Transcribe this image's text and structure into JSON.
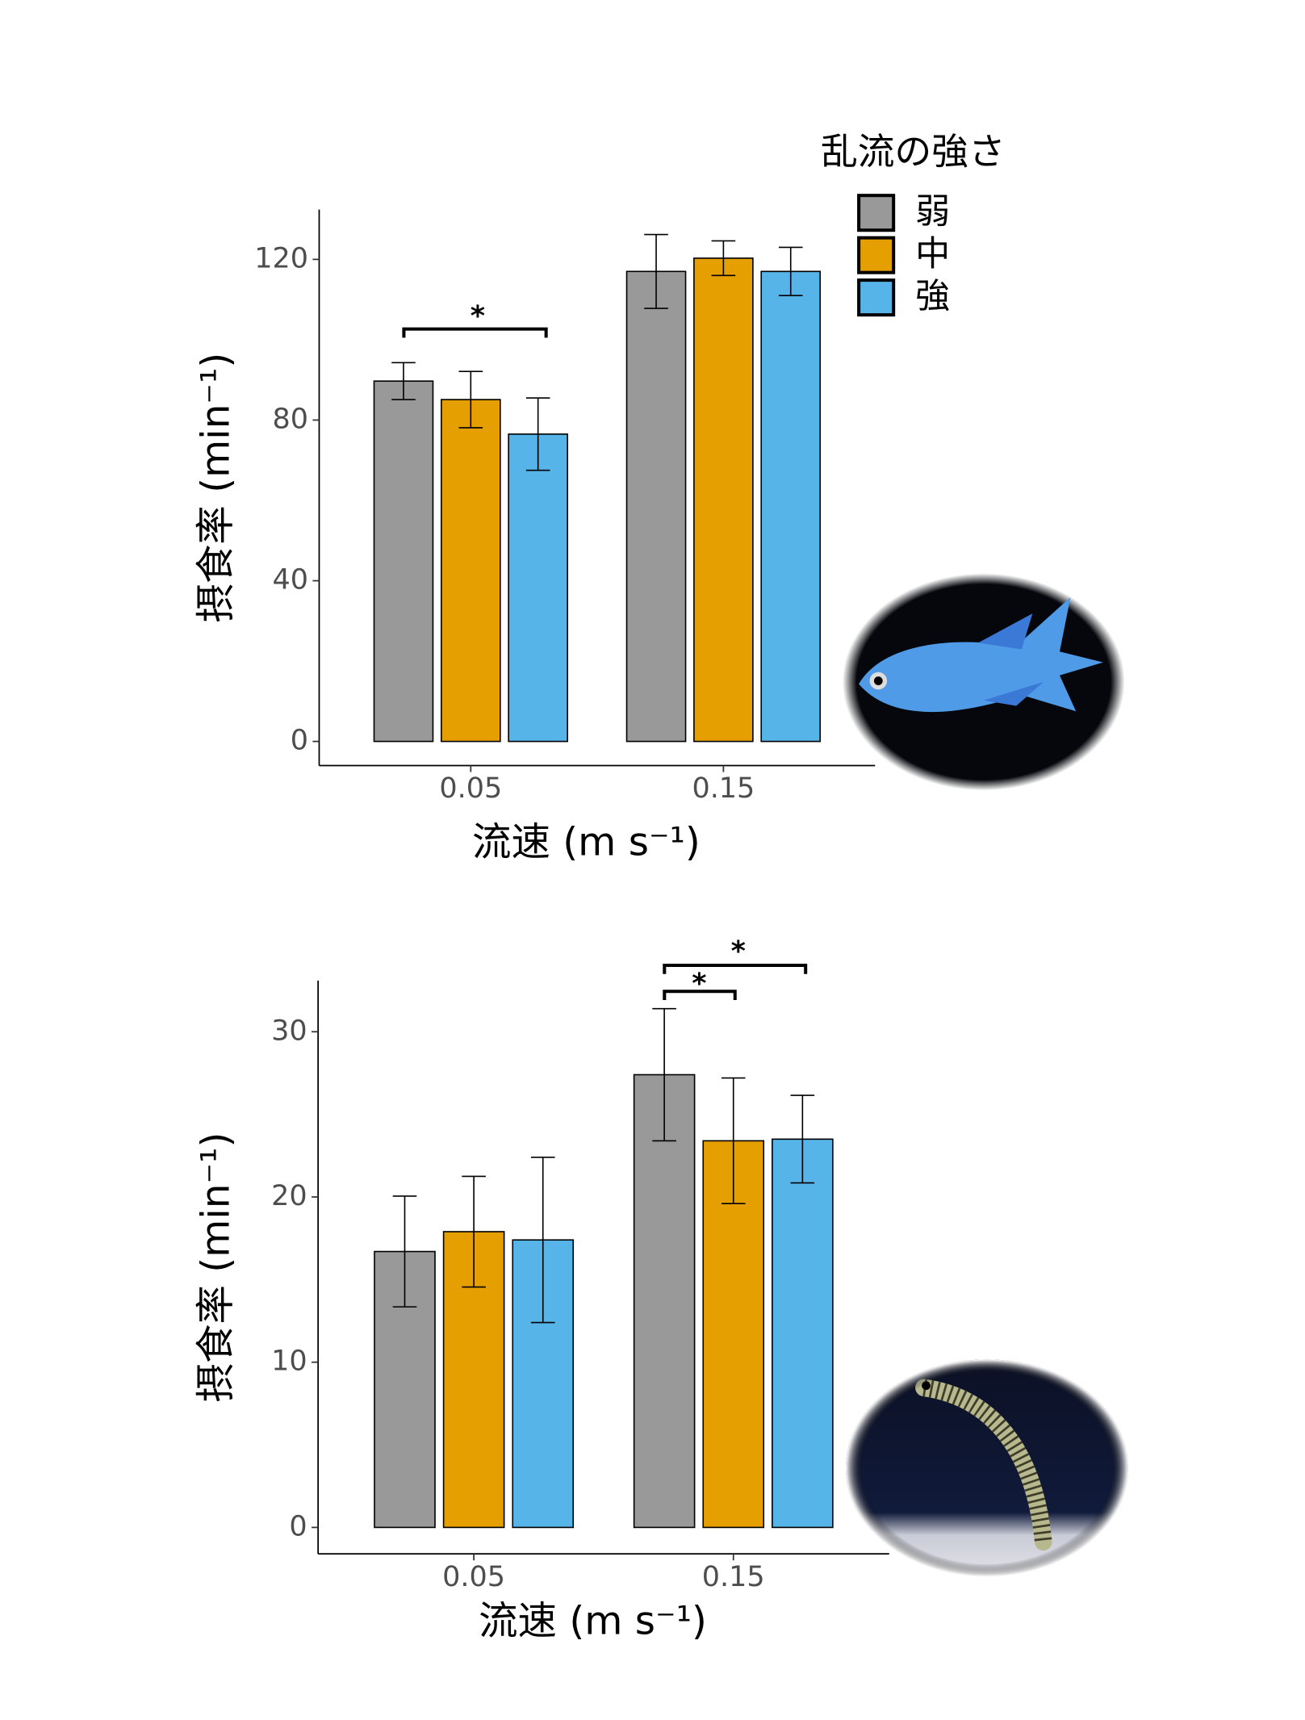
{
  "legend": {
    "title": "乱流の強さ",
    "entries": [
      "弱",
      "中",
      "強"
    ]
  },
  "chart_data": [
    {
      "type": "bar",
      "categories": [
        "0.05",
        "0.15"
      ],
      "xlabel": "流速 (m s⁻¹)",
      "ylabel": "摂食率 (min⁻¹)",
      "ylim": [
        -6,
        132.4
      ],
      "yticks": [
        0,
        40,
        80,
        120
      ],
      "series": [
        {
          "color": "#999999",
          "values": [
            89.7,
            117
          ],
          "errors": [
            4.6,
            9.2
          ]
        },
        {
          "color": "#e69f00",
          "values": [
            85.1,
            120.3
          ],
          "errors": [
            7,
            4.3
          ]
        },
        {
          "color": "#56b4e9",
          "values": [
            76.5,
            117
          ],
          "errors": [
            9,
            6
          ]
        }
      ],
      "annotations": [
        "*"
      ]
    },
    {
      "type": "bar",
      "categories": [
        "0.05",
        "0.15"
      ],
      "xlabel": "流速 (m s⁻¹)",
      "ylabel": "摂食率 (min⁻¹)",
      "ylim": [
        -1.6,
        33.1
      ],
      "yticks": [
        0,
        10,
        20,
        30
      ],
      "series": [
        {
          "color": "#999999",
          "values": [
            16.7,
            27.4
          ],
          "errors": [
            3.35,
            4
          ]
        },
        {
          "color": "#e69f00",
          "values": [
            17.9,
            23.4
          ],
          "errors": [
            3.35,
            3.8
          ]
        },
        {
          "color": "#56b4e9",
          "values": [
            17.4,
            23.5
          ],
          "errors": [
            5,
            2.65
          ]
        }
      ],
      "annotations": [
        "*",
        "*"
      ]
    }
  ]
}
